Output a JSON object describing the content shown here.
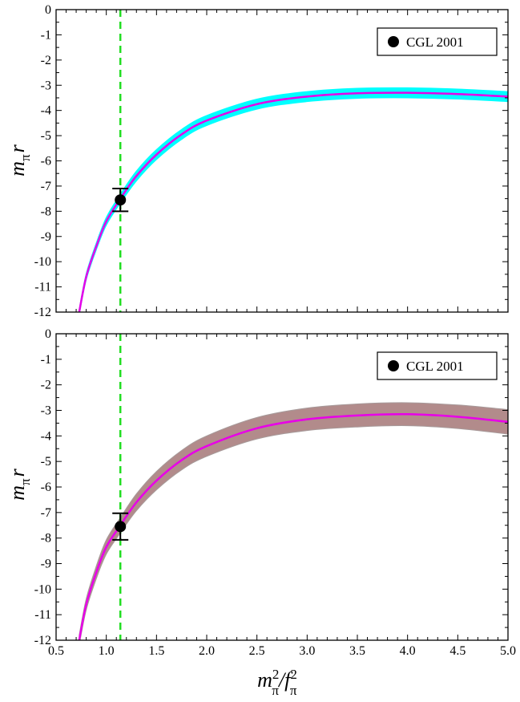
{
  "colors": {
    "line": "#e800e8",
    "band_top": "#00ffff",
    "band_bottom": "#b28b8b",
    "band_bottom_edge": "#a79a9a",
    "vline": "#22dd22",
    "point": "#000000"
  },
  "chart_data": [
    {
      "type": "line",
      "panel": "top",
      "ylabel_main": "m",
      "ylabel_sub": "π",
      "ylabel_tail": "r",
      "xlim": [
        0.5,
        5.0
      ],
      "ylim": [
        -12,
        0
      ],
      "yticks": [
        "0",
        "-1",
        "-2",
        "-3",
        "-4",
        "-5",
        "-6",
        "-7",
        "-8",
        "-9",
        "-10",
        "-11",
        "-12"
      ],
      "grid": false,
      "legend": {
        "placement": "top-right",
        "label": "CGL 2001"
      },
      "vline_x": 1.14,
      "central_curve": {
        "x": [
          0.73,
          0.8,
          0.9,
          1.0,
          1.14,
          1.3,
          1.5,
          1.75,
          2.0,
          2.5,
          3.0,
          3.5,
          4.0,
          4.5,
          5.0
        ],
        "y": [
          -12.0,
          -10.6,
          -9.4,
          -8.4,
          -7.5,
          -6.6,
          -5.75,
          -4.95,
          -4.4,
          -3.75,
          -3.45,
          -3.32,
          -3.3,
          -3.35,
          -3.45
        ]
      },
      "band_halfwidth": [
        0.12,
        0.13,
        0.14,
        0.16,
        0.18,
        0.2,
        0.2,
        0.2,
        0.2,
        0.2,
        0.2,
        0.2,
        0.2,
        0.2,
        0.2
      ],
      "point": {
        "x": 1.14,
        "y": -7.55,
        "yerr": 0.45,
        "label": "CGL 2001"
      }
    },
    {
      "type": "line",
      "panel": "bottom",
      "ylabel_main": "m",
      "ylabel_sub": "π",
      "ylabel_tail": "r",
      "xlabel_main": "m",
      "xlabel_mid": "/f",
      "xlabel_sup": "2",
      "xlabel_sub": "π",
      "xlim": [
        0.5,
        5.0
      ],
      "ylim": [
        -12,
        0
      ],
      "xticks": [
        "0.5",
        "1.0",
        "1.5",
        "2.0",
        "2.5",
        "3.0",
        "3.5",
        "4.0",
        "4.5",
        "5.0"
      ],
      "yticks": [
        "0",
        "-1",
        "-2",
        "-3",
        "-4",
        "-5",
        "-6",
        "-7",
        "-8",
        "-9",
        "-10",
        "-11",
        "-12"
      ],
      "grid": false,
      "legend": {
        "placement": "top-right",
        "label": "CGL 2001"
      },
      "vline_x": 1.14,
      "central_curve": {
        "x": [
          0.73,
          0.8,
          0.9,
          1.0,
          1.14,
          1.3,
          1.5,
          1.75,
          2.0,
          2.5,
          3.0,
          3.5,
          4.0,
          4.5,
          5.0
        ],
        "y": [
          -12.0,
          -10.6,
          -9.35,
          -8.35,
          -7.5,
          -6.6,
          -5.75,
          -4.95,
          -4.4,
          -3.7,
          -3.35,
          -3.2,
          -3.15,
          -3.25,
          -3.45
        ]
      },
      "band_halfwidth": [
        0.2,
        0.22,
        0.25,
        0.28,
        0.3,
        0.33,
        0.36,
        0.38,
        0.4,
        0.42,
        0.44,
        0.45,
        0.45,
        0.46,
        0.48
      ],
      "point": {
        "x": 1.14,
        "y": -7.55,
        "yerr": 0.52,
        "label": "CGL 2001"
      }
    }
  ]
}
